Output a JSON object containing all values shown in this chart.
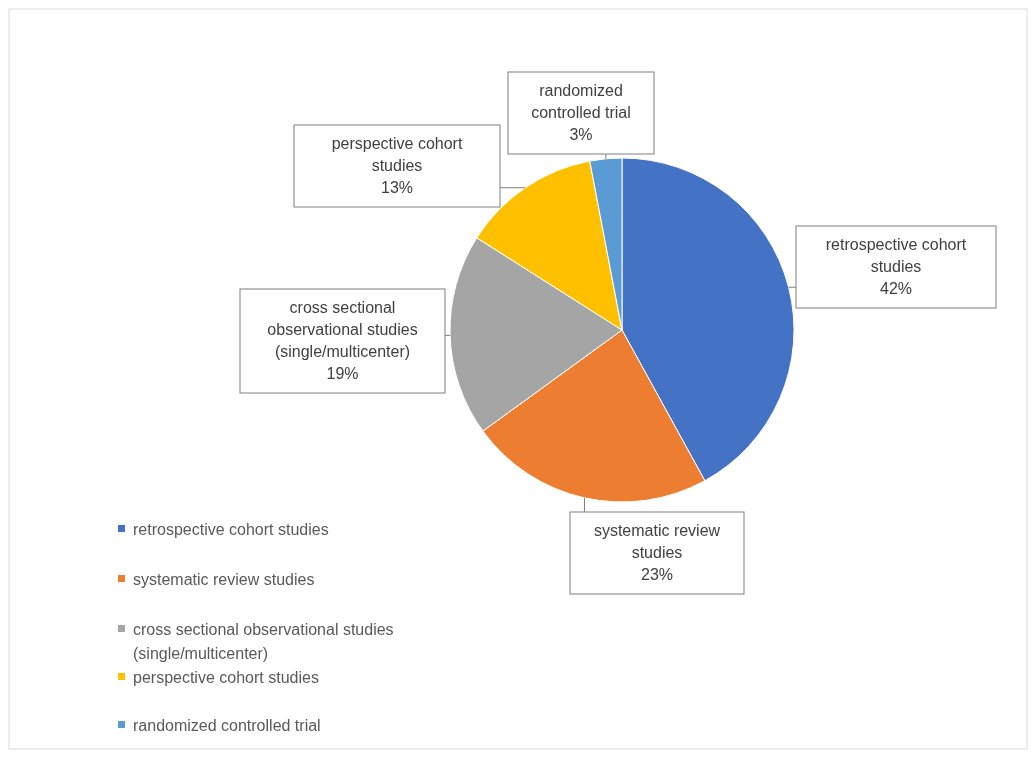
{
  "chart_data": {
    "type": "pie",
    "categories": [
      "retrospective cohort studies",
      "systematic review studies",
      "cross sectional observational studies (single/multicenter)",
      "perspective cohort studies",
      "randomized controlled trial"
    ],
    "values": [
      42,
      23,
      19,
      13,
      3
    ],
    "value_labels": [
      "42%",
      "23%",
      "19%",
      "13%",
      "3%"
    ],
    "colors": [
      "#4472c4",
      "#ed7d31",
      "#a5a5a5",
      "#ffc000",
      "#5b9bd5"
    ],
    "legend": "bottom left"
  }
}
